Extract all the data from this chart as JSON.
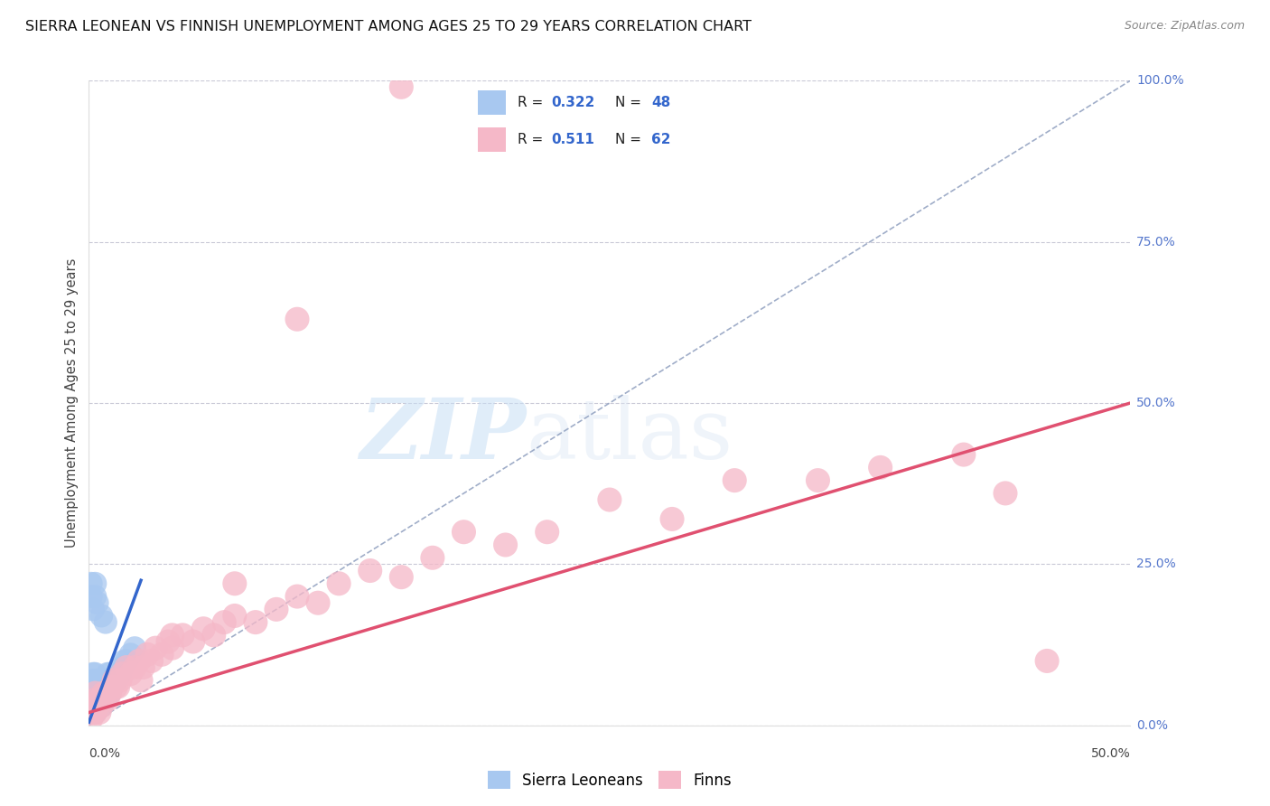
{
  "title": "SIERRA LEONEAN VS FINNISH UNEMPLOYMENT AMONG AGES 25 TO 29 YEARS CORRELATION CHART",
  "source": "Source: ZipAtlas.com",
  "ylabel": "Unemployment Among Ages 25 to 29 years",
  "ylim": [
    0,
    1.0
  ],
  "xlim": [
    0,
    0.5
  ],
  "ytick_vals": [
    0.0,
    0.25,
    0.5,
    0.75,
    1.0
  ],
  "ytick_labels": [
    "0.0%",
    "25.0%",
    "50.0%",
    "75.0%",
    "100.0%"
  ],
  "xtick_vals": [
    0.0,
    0.5
  ],
  "xtick_labels": [
    "0.0%",
    "50.0%"
  ],
  "R_blue": 0.322,
  "N_blue": 48,
  "R_pink": 0.511,
  "N_pink": 62,
  "sl_color": "#a8c8f0",
  "fi_color": "#f5b8c8",
  "sl_line_color": "#3366cc",
  "fi_line_color": "#e05070",
  "ref_line_color": "#8899bb",
  "legend_label_blue": "Sierra Leoneans",
  "legend_label_pink": "Finns",
  "watermark_zip": "ZIP",
  "watermark_atlas": "atlas",
  "background_color": "#ffffff",
  "grid_color": "#bbbbcc",
  "title_fontsize": 11.5,
  "source_fontsize": 9,
  "axis_label_color": "#5577cc",
  "sl_x": [
    0.001,
    0.001,
    0.001,
    0.001,
    0.002,
    0.002,
    0.002,
    0.002,
    0.002,
    0.002,
    0.003,
    0.003,
    0.003,
    0.003,
    0.004,
    0.004,
    0.004,
    0.005,
    0.005,
    0.005,
    0.006,
    0.006,
    0.007,
    0.007,
    0.008,
    0.008,
    0.009,
    0.009,
    0.01,
    0.01,
    0.011,
    0.012,
    0.013,
    0.014,
    0.015,
    0.016,
    0.017,
    0.018,
    0.02,
    0.022,
    0.001,
    0.001,
    0.002,
    0.003,
    0.003,
    0.004,
    0.006,
    0.008
  ],
  "sl_y": [
    0.02,
    0.03,
    0.04,
    0.05,
    0.02,
    0.03,
    0.04,
    0.05,
    0.07,
    0.08,
    0.02,
    0.04,
    0.06,
    0.08,
    0.03,
    0.05,
    0.07,
    0.03,
    0.05,
    0.06,
    0.03,
    0.05,
    0.04,
    0.06,
    0.04,
    0.07,
    0.05,
    0.08,
    0.05,
    0.08,
    0.06,
    0.07,
    0.07,
    0.08,
    0.08,
    0.09,
    0.1,
    0.1,
    0.11,
    0.12,
    0.2,
    0.22,
    0.18,
    0.2,
    0.22,
    0.19,
    0.17,
    0.16
  ],
  "fi_x": [
    0.001,
    0.002,
    0.002,
    0.003,
    0.003,
    0.004,
    0.005,
    0.005,
    0.006,
    0.007,
    0.008,
    0.009,
    0.01,
    0.011,
    0.012,
    0.013,
    0.015,
    0.016,
    0.018,
    0.02,
    0.022,
    0.024,
    0.026,
    0.028,
    0.03,
    0.032,
    0.035,
    0.038,
    0.04,
    0.045,
    0.05,
    0.055,
    0.06,
    0.065,
    0.07,
    0.08,
    0.09,
    0.1,
    0.11,
    0.12,
    0.135,
    0.15,
    0.165,
    0.18,
    0.2,
    0.22,
    0.25,
    0.28,
    0.31,
    0.35,
    0.38,
    0.42,
    0.44,
    0.46,
    0.003,
    0.007,
    0.014,
    0.025,
    0.04,
    0.07,
    0.1,
    0.15
  ],
  "fi_y": [
    0.01,
    0.02,
    0.03,
    0.02,
    0.04,
    0.03,
    0.02,
    0.04,
    0.03,
    0.04,
    0.05,
    0.04,
    0.05,
    0.06,
    0.07,
    0.06,
    0.07,
    0.08,
    0.09,
    0.08,
    0.09,
    0.1,
    0.09,
    0.11,
    0.1,
    0.12,
    0.11,
    0.13,
    0.12,
    0.14,
    0.13,
    0.15,
    0.14,
    0.16,
    0.17,
    0.16,
    0.18,
    0.2,
    0.19,
    0.22,
    0.24,
    0.23,
    0.26,
    0.3,
    0.28,
    0.3,
    0.35,
    0.32,
    0.38,
    0.38,
    0.4,
    0.42,
    0.36,
    0.1,
    0.05,
    0.05,
    0.06,
    0.07,
    0.14,
    0.22,
    0.63,
    0.99
  ]
}
